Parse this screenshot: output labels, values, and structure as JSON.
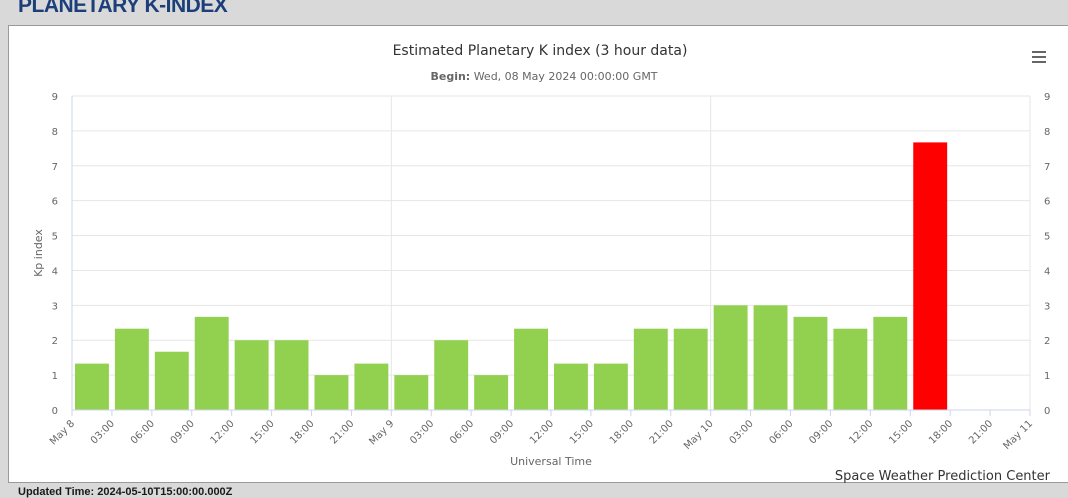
{
  "page": {
    "heading": "PLANETARY K-INDEX",
    "updated_text": "Updated Time: 2024-05-10T15:00:00.000Z"
  },
  "chart": {
    "begin_label": "Begin:",
    "begin_value": " Wed, 08 May 2024 00:00:00 GMT",
    "credits": "Space Weather Prediction Center",
    "menu_icon": "hamburger-menu-icon"
  },
  "colors": {
    "normal": "#92d050",
    "storm": "#ff0000",
    "heading": "#1c3f7a"
  },
  "chart_data": {
    "type": "bar",
    "title": "Estimated Planetary K index (3 hour data)",
    "subtitle": "Begin: Wed, 08 May 2024 00:00:00 GMT",
    "xlabel": "Universal Time",
    "ylabel": "Kp index",
    "ylim": [
      0,
      9
    ],
    "yticks": [
      0,
      1,
      2,
      3,
      4,
      5,
      6,
      7,
      8,
      9
    ],
    "xticks": [
      "May 8",
      "03:00",
      "06:00",
      "09:00",
      "12:00",
      "15:00",
      "18:00",
      "21:00",
      "May 9",
      "03:00",
      "06:00",
      "09:00",
      "12:00",
      "15:00",
      "18:00",
      "21:00",
      "May 10",
      "03:00",
      "06:00",
      "09:00",
      "12:00",
      "15:00",
      "18:00",
      "21:00",
      "May 11"
    ],
    "values": [
      1.33,
      2.33,
      1.67,
      2.67,
      2.0,
      2.0,
      1.0,
      1.33,
      1.0,
      2.0,
      1.0,
      2.33,
      1.33,
      1.33,
      2.33,
      2.33,
      3.0,
      3.0,
      2.67,
      2.33,
      2.67,
      7.67
    ],
    "bar_colors": [
      "#92d050",
      "#92d050",
      "#92d050",
      "#92d050",
      "#92d050",
      "#92d050",
      "#92d050",
      "#92d050",
      "#92d050",
      "#92d050",
      "#92d050",
      "#92d050",
      "#92d050",
      "#92d050",
      "#92d050",
      "#92d050",
      "#92d050",
      "#92d050",
      "#92d050",
      "#92d050",
      "#92d050",
      "#ff0000"
    ],
    "grid": true,
    "dual_y_axis": true
  }
}
